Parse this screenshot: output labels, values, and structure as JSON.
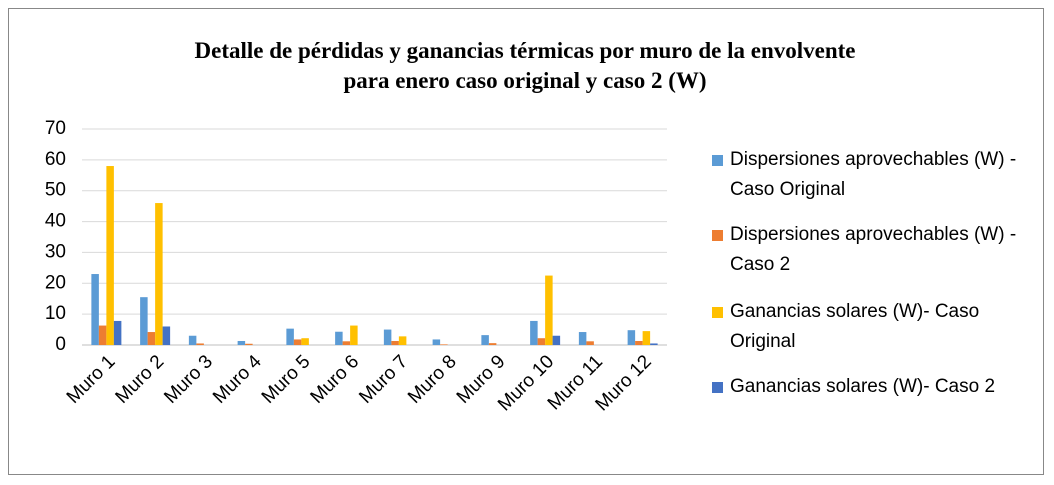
{
  "chart_data": {
    "type": "bar",
    "title": "Detalle de pérdidas y ganancias térmicas por muro de la envolvente para enero caso original y caso 2 (W)",
    "categories": [
      "Muro 1",
      "Muro 2",
      "Muro 3",
      "Muro 4",
      "Muro 5",
      "Muro 6",
      "Muro 7",
      "Muro 8",
      "Muro 9",
      "Muro 10",
      "Muro 11",
      "Muro 12"
    ],
    "series": [
      {
        "name": "Dispersiones aprovechables (W) - Caso Original",
        "color": "#5b9bd5",
        "values": [
          23,
          15.5,
          3,
          1.3,
          5.3,
          4.3,
          5,
          1.8,
          3.2,
          7.8,
          4.2,
          4.8
        ]
      },
      {
        "name": "Dispersiones aprovechables (W) - Caso 2",
        "color": "#ed7d31",
        "values": [
          6.3,
          4.2,
          0.5,
          0.4,
          1.8,
          1.2,
          1.3,
          0.2,
          0.6,
          2.2,
          1.2,
          1.3
        ]
      },
      {
        "name": "Ganancias solares (W)- Caso Original",
        "color": "#ffc000",
        "values": [
          58,
          46,
          0,
          0,
          2.2,
          6.3,
          2.8,
          0,
          0,
          22.5,
          0,
          4.5
        ]
      },
      {
        "name": "Ganancias solares (W)- Caso 2",
        "color": "#4472c4",
        "values": [
          7.8,
          6,
          0,
          0,
          0,
          0,
          0,
          0,
          0,
          3,
          0,
          0.5
        ]
      }
    ],
    "ylim": [
      0,
      70
    ],
    "yticks": [
      0,
      10,
      20,
      30,
      40,
      50,
      60,
      70
    ],
    "grid": true,
    "legend": "right"
  }
}
